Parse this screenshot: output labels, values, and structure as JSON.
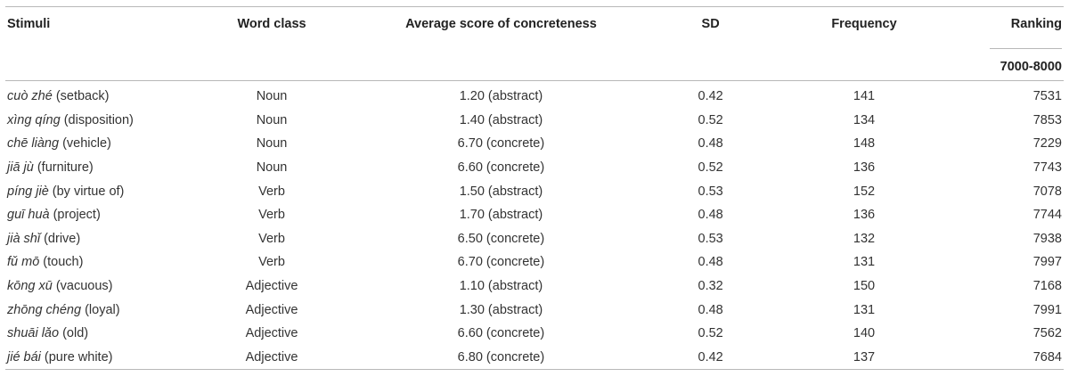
{
  "table": {
    "headers": {
      "stimuli": "Stimuli",
      "word_class": "Word class",
      "avg_score": "Average score of concreteness",
      "sd": "SD",
      "frequency": "Frequency",
      "ranking": "Ranking"
    },
    "ranking_range": "7000-8000",
    "rows": [
      {
        "pinyin": "cuò zhé",
        "gloss": " (setback)",
        "word_class": "Noun",
        "avg": "1.20 (abstract)",
        "sd": "0.42",
        "freq": "141",
        "rank": "7531"
      },
      {
        "pinyin": "xìng qíng",
        "gloss": " (disposition)",
        "word_class": "Noun",
        "avg": "1.40 (abstract)",
        "sd": "0.52",
        "freq": "134",
        "rank": "7853"
      },
      {
        "pinyin": "chē liàng",
        "gloss": " (vehicle)",
        "word_class": "Noun",
        "avg": "6.70 (concrete)",
        "sd": "0.48",
        "freq": "148",
        "rank": "7229"
      },
      {
        "pinyin": "jiā jù",
        "gloss": " (furniture)",
        "word_class": "Noun",
        "avg": "6.60 (concrete)",
        "sd": "0.52",
        "freq": "136",
        "rank": "7743"
      },
      {
        "pinyin": "píng jiè",
        "gloss": " (by virtue of)",
        "word_class": "Verb",
        "avg": "1.50 (abstract)",
        "sd": "0.53",
        "freq": "152",
        "rank": "7078"
      },
      {
        "pinyin": "guī huà",
        "gloss": " (project)",
        "word_class": "Verb",
        "avg": "1.70 (abstract)",
        "sd": "0.48",
        "freq": "136",
        "rank": "7744"
      },
      {
        "pinyin": "jià shǐ",
        "gloss": " (drive)",
        "word_class": "Verb",
        "avg": "6.50 (concrete)",
        "sd": "0.53",
        "freq": "132",
        "rank": "7938"
      },
      {
        "pinyin": "fǔ mō",
        "gloss": " (touch)",
        "word_class": "Verb",
        "avg": "6.70 (concrete)",
        "sd": "0.48",
        "freq": "131",
        "rank": "7997"
      },
      {
        "pinyin": "kōng xū",
        "gloss": " (vacuous)",
        "word_class": "Adjective",
        "avg": "1.10 (abstract)",
        "sd": "0.32",
        "freq": "150",
        "rank": "7168"
      },
      {
        "pinyin": "zhōng chéng",
        "gloss": " (loyal)",
        "word_class": "Adjective",
        "avg": "1.30 (abstract)",
        "sd": "0.48",
        "freq": "131",
        "rank": "7991"
      },
      {
        "pinyin": "shuāi lǎo",
        "gloss": " (old)",
        "word_class": "Adjective",
        "avg": "6.60 (concrete)",
        "sd": "0.52",
        "freq": "140",
        "rank": "7562"
      },
      {
        "pinyin": "jié bái",
        "gloss": " (pure white)",
        "word_class": "Adjective",
        "avg": "6.80 (concrete)",
        "sd": "0.42",
        "freq": "137",
        "rank": "7684"
      }
    ]
  }
}
